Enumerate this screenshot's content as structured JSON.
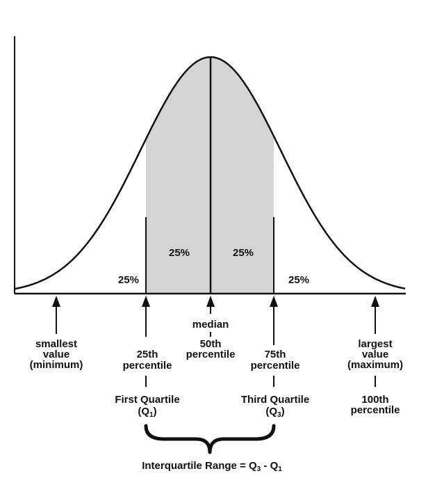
{
  "percent_regions": {
    "left_tail": "25%",
    "inner_left": "25%",
    "inner_right": "25%",
    "right_tail": "25%"
  },
  "markers": {
    "minimum": {
      "line1": "smallest",
      "line2": "value",
      "line3": "(minimum)"
    },
    "q1": {
      "line1": "25th",
      "line2": "percentile",
      "name": "First Quartile",
      "symbol": "(Q",
      "symbol_sub": "1",
      "symbol_end": ")"
    },
    "median": {
      "line1": "median",
      "line2": "50th",
      "line3": "percentile"
    },
    "q3": {
      "line1": "75th",
      "line2": "percentile",
      "name": "Third Quartile",
      "symbol": "(Q",
      "symbol_sub": "3",
      "symbol_end": ")"
    },
    "maximum": {
      "line1": "largest",
      "line2": "value",
      "line3": "(maximum)",
      "line4": "100th",
      "line5": "percentile"
    }
  },
  "iqr": {
    "prefix": "Interquartile Range = ",
    "q3": "Q",
    "q3_sub": "3",
    "minus": " - ",
    "q1": "Q",
    "q1_sub": "1"
  },
  "colors": {
    "shaded_fill": "#d4d4d4",
    "ink": "#111111",
    "background": "#ffffff"
  }
}
